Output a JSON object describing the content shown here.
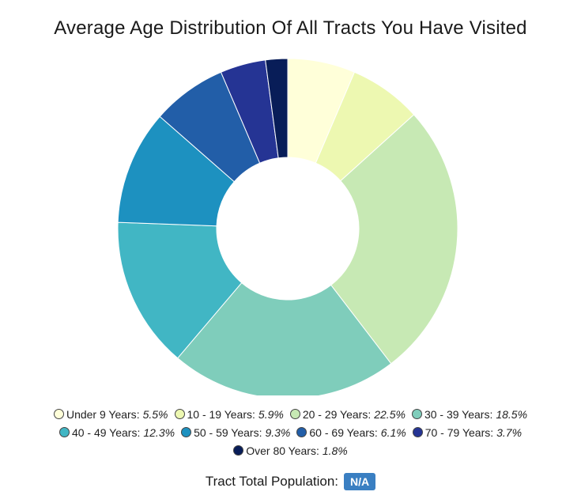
{
  "chart_data": {
    "type": "pie",
    "title": "Average Age Distribution Of All Tracts You Have Visited",
    "categories": [
      "Under 9 Years",
      "10 - 19 Years",
      "20 - 29 Years",
      "30 - 39 Years",
      "40 - 49 Years",
      "50 - 59 Years",
      "60 - 69 Years",
      "70 - 79 Years",
      "Over 80 Years"
    ],
    "values": [
      5.5,
      5.9,
      22.5,
      18.5,
      12.3,
      9.3,
      6.1,
      3.7,
      1.8
    ],
    "value_labels": [
      "5.5%",
      "5.9%",
      "22.5%",
      "18.5%",
      "12.3%",
      "9.3%",
      "6.1%",
      "3.7%",
      "1.8%"
    ],
    "colors": [
      "#ffffd9",
      "#edf8b1",
      "#c7e9b4",
      "#7fcdbb",
      "#41b6c4",
      "#1d91c0",
      "#225ea8",
      "#253494",
      "#081d58"
    ],
    "donut": true,
    "legend_placement": "bottom"
  },
  "footer": {
    "label": "Tract Total Population:",
    "value": "N/A"
  }
}
